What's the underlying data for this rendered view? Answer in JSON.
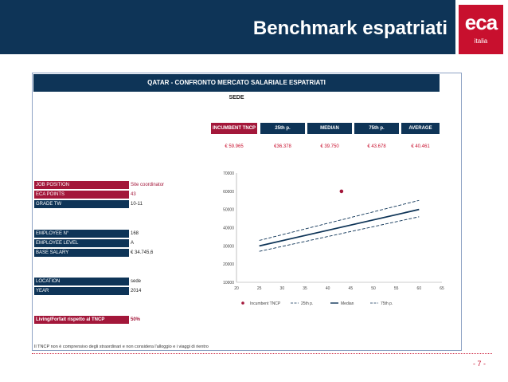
{
  "header": {
    "title": "Benchmark espatriati"
  },
  "logo": {
    "mark": "eca",
    "sub": "italia"
  },
  "panel": {
    "title": "QATAR - CONFRONTO MERCATO SALARIALE ESPATRIATI",
    "subtitle": "SEDE"
  },
  "benchmarks": [
    {
      "label": "INCUMBENT TNCP",
      "value": "€ 59.965",
      "highlight": true
    },
    {
      "label": "25th p.",
      "value": "€36.378"
    },
    {
      "label": "MEDIAN",
      "value": "€ 39.750"
    },
    {
      "label": "75th p.",
      "value": "€ 43.678"
    },
    {
      "label": "AVERAGE",
      "value": "€ 40.461"
    }
  ],
  "fields": {
    "job_position": {
      "label": "JOB POSITION",
      "value": "Site coordinator"
    },
    "eca_points": {
      "label": "ECA POINTS",
      "value": "43"
    },
    "grade": {
      "label": "GRADE TW",
      "value": "10-11"
    },
    "employee_n": {
      "label": "EMPLOYEE N°",
      "value": "168"
    },
    "employee_level": {
      "label": "EMPLOYEE LEVEL",
      "value": "A"
    },
    "base_salary": {
      "label": "BASE SALARY",
      "value": "€ 34.745,6"
    },
    "location": {
      "label": "LOCATION",
      "value": "sede"
    },
    "year": {
      "label": "YEAR",
      "value": "2014"
    },
    "living": {
      "label": "Living/Forfait rispetto al TNCP",
      "value": "50%"
    }
  },
  "footnote": "Il TNCP non è comprensivo degli straordinari e non considera l'alloggio e i viaggi di rientro",
  "page": {
    "number": "- 7 -"
  },
  "colors": {
    "navy": "#0e3457",
    "red": "#a3173a",
    "brand": "#c8102e"
  },
  "chart_data": {
    "type": "line",
    "title": "",
    "xlabel": "",
    "ylabel": "",
    "xlim": [
      20,
      65
    ],
    "ylim": [
      10000,
      70000
    ],
    "x_ticks": [
      "20",
      "25",
      "30",
      "35",
      "40",
      "45",
      "50",
      "55",
      "60",
      "65"
    ],
    "y_ticks": [
      "10000",
      "20000",
      "30000",
      "40000",
      "50000",
      "60000",
      "70000"
    ],
    "series": [
      {
        "name": "25th p.",
        "style": "dashed",
        "x": [
          25,
          60
        ],
        "y": [
          27000,
          46000
        ]
      },
      {
        "name": "Median",
        "style": "solid",
        "x": [
          25,
          60
        ],
        "y": [
          30000,
          50000
        ]
      },
      {
        "name": "75th p.",
        "style": "dashed",
        "x": [
          25,
          60
        ],
        "y": [
          33000,
          55000
        ]
      }
    ],
    "points": [
      {
        "name": "Incumbent TNCP",
        "x": 43,
        "y": 59965
      }
    ],
    "legend": [
      "Incumbent TNCP",
      "25th p.",
      "Median",
      "75th p."
    ]
  }
}
